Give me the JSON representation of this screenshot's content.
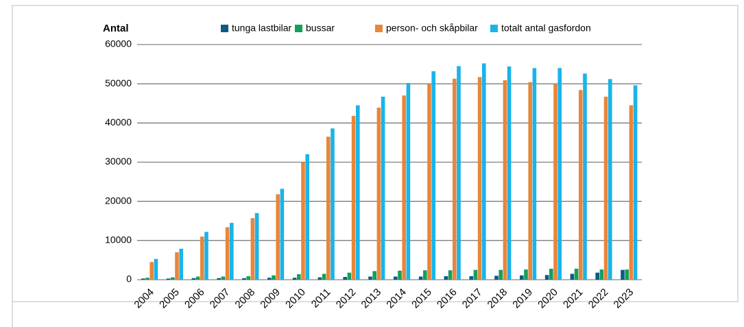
{
  "chart_data": {
    "type": "bar",
    "y_label": "Antal",
    "categories": [
      "2004",
      "2005",
      "2006",
      "2007",
      "2008",
      "2009",
      "2010",
      "2011",
      "2012",
      "2013",
      "2014",
      "2015",
      "2016",
      "2017",
      "2018",
      "2019",
      "2020",
      "2021",
      "2022",
      "2023"
    ],
    "series": [
      {
        "name": "tunga lastbilar",
        "color": "#0d5b86",
        "values": [
          300,
          300,
          400,
          400,
          400,
          500,
          500,
          600,
          700,
          800,
          800,
          800,
          900,
          900,
          1000,
          1100,
          1200,
          1500,
          1800,
          2500
        ]
      },
      {
        "name": "bussar",
        "color": "#14a05a",
        "values": [
          500,
          600,
          800,
          800,
          900,
          1100,
          1400,
          1500,
          1800,
          2200,
          2300,
          2400,
          2400,
          2500,
          2500,
          2600,
          2800,
          2800,
          2600,
          2600
        ]
      },
      {
        "name": "person- och skåpbilar",
        "color": "#e8863a",
        "values": [
          4500,
          7000,
          11000,
          13400,
          15700,
          21800,
          30000,
          36500,
          41800,
          43900,
          47000,
          50000,
          51300,
          51700,
          50900,
          50400,
          50000,
          48400,
          46700,
          44500
        ]
      },
      {
        "name": "totalt antal gasfordon",
        "color": "#1ab4e8",
        "values": [
          5300,
          7900,
          12200,
          14500,
          17000,
          23200,
          32000,
          38600,
          44500,
          46700,
          50200,
          53200,
          54500,
          55200,
          54400,
          54000,
          54000,
          52600,
          51200,
          49600
        ]
      }
    ],
    "ylim": [
      0,
      60000
    ],
    "yticks": [
      0,
      10000,
      20000,
      30000,
      40000,
      50000,
      60000
    ],
    "grid": true
  }
}
